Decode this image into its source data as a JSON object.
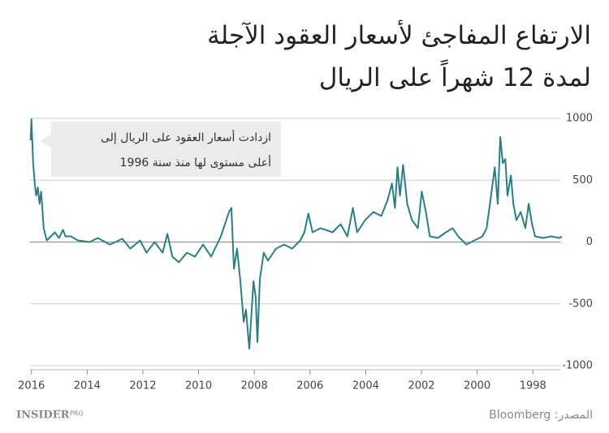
{
  "chart_data": {
    "type": "line",
    "title": [
      "الارتفاع المفاجئ لأسعار العقود الآجلة",
      "لمدة 12 شهراً على الريال"
    ],
    "annotation": [
      "ازدادت أسعار العقود على الريال إلى",
      "أعلى مستوى لها منذ سنة 1996"
    ],
    "source": "المصدر: Bloomberg",
    "logo": "INSIDER",
    "logo_suffix": "PRO",
    "color": "#2a7f86",
    "x": [
      2016.03,
      2016.0,
      2015.94,
      2015.88,
      2015.83,
      2015.77,
      2015.71,
      2015.65,
      2015.56,
      2015.45,
      2015.3,
      2015.16,
      2015.01,
      2014.87,
      2014.78,
      2014.58,
      2014.34,
      2013.91,
      2013.62,
      2013.18,
      2012.74,
      2012.45,
      2012.1,
      2011.87,
      2011.58,
      2011.29,
      2011.12,
      2010.94,
      2010.71,
      2010.42,
      2010.13,
      2009.84,
      2009.55,
      2009.2,
      2008.91,
      2008.82,
      2008.73,
      2008.62,
      2008.5,
      2008.38,
      2008.3,
      2008.18,
      2008.03,
      2007.95,
      2007.89,
      2007.8,
      2007.66,
      2007.51,
      2007.22,
      2006.93,
      2006.64,
      2006.35,
      2006.2,
      2006.06,
      2005.91,
      2005.62,
      2005.19,
      2004.9,
      2004.66,
      2004.46,
      2004.31,
      2004.02,
      2003.73,
      2003.44,
      2003.21,
      2003.06,
      2002.95,
      2002.86,
      2002.77,
      2002.66,
      2002.51,
      2002.34,
      2002.13,
      2001.99,
      2001.84,
      2001.7,
      2001.41,
      2001.12,
      2000.88,
      2000.68,
      2000.39,
      2000.1,
      1999.81,
      1999.66,
      1999.52,
      1999.37,
      1999.26,
      1999.17,
      1999.08,
      1998.99,
      1998.91,
      1998.79,
      1998.7,
      1998.59,
      1998.44,
      1998.27,
      1998.15,
      1998.03,
      1997.92,
      1997.63,
      1997.34,
      1997.05,
      1996.96
    ],
    "values": [
      822,
      993,
      638,
      474,
      375,
      441,
      309,
      408,
      112,
      13,
      46,
      79,
      33,
      99,
      46,
      46,
      13,
      0,
      33,
      -20,
      26,
      -53,
      13,
      -86,
      0,
      -86,
      66,
      -118,
      -164,
      -86,
      -118,
      -20,
      -118,
      46,
      243,
      276,
      -217,
      -53,
      -316,
      -645,
      -546,
      -862,
      -316,
      -447,
      -809,
      -303,
      -86,
      -151,
      -53,
      -20,
      -53,
      13,
      79,
      230,
      79,
      112,
      79,
      145,
      46,
      276,
      79,
      178,
      243,
      211,
      342,
      474,
      276,
      605,
      375,
      625,
      309,
      178,
      112,
      408,
      243,
      46,
      33,
      79,
      112,
      46,
      -20,
      13,
      46,
      112,
      342,
      605,
      309,
      849,
      638,
      671,
      375,
      539,
      309,
      178,
      243,
      112,
      309,
      145,
      46,
      33,
      46,
      33,
      46
    ],
    "xlim": [
      2016.05,
      1996.9
    ],
    "xticks": [
      2016,
      2014,
      2012,
      2010,
      2008,
      2006,
      2004,
      2002,
      2000,
      1998
    ],
    "ylim": [
      -1000,
      1000
    ],
    "yticks": [
      1000,
      500,
      0,
      -500,
      -1000
    ],
    "grid": true
  }
}
